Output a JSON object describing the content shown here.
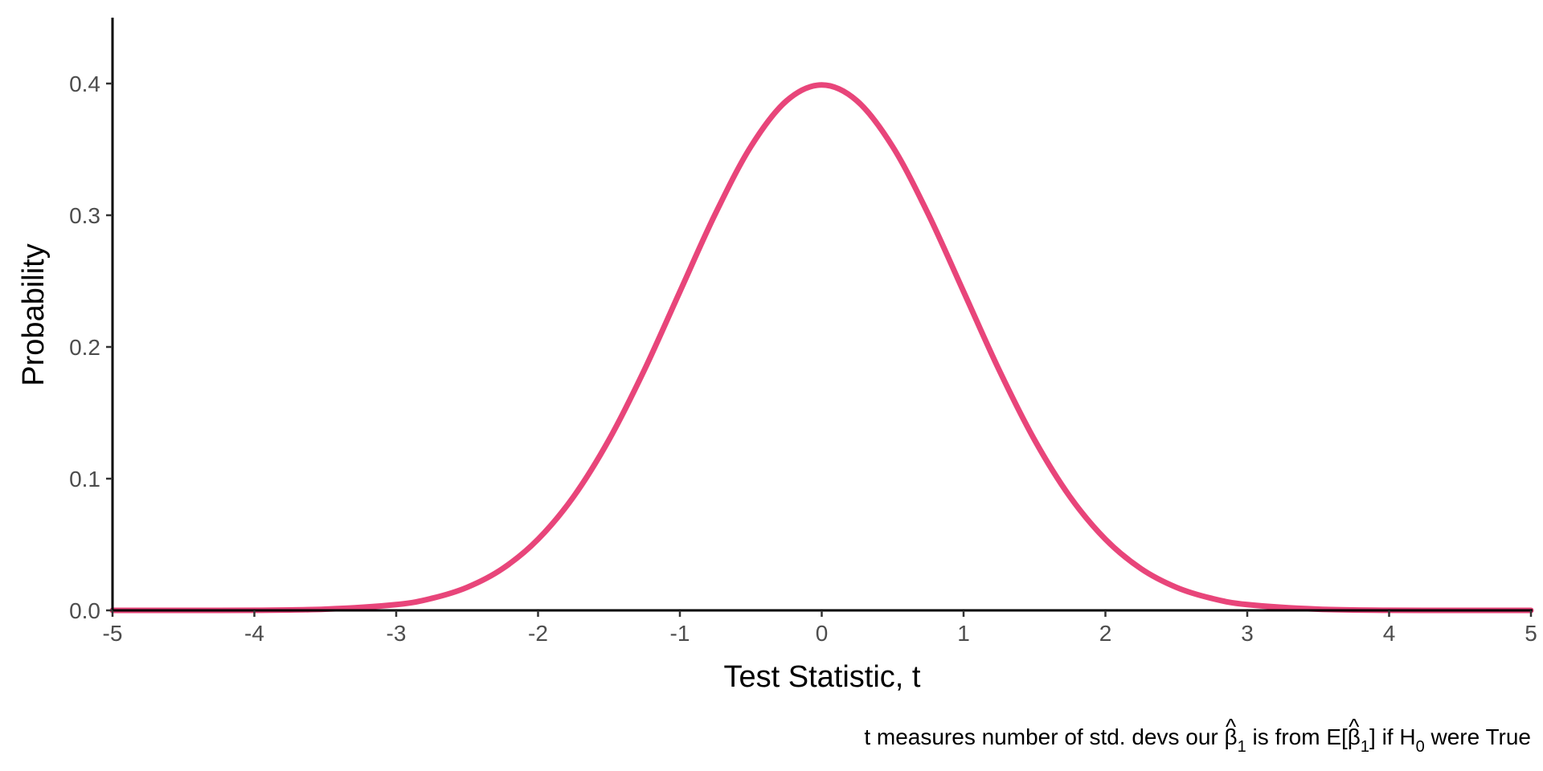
{
  "chart_data": {
    "type": "line",
    "title": "",
    "xlabel": "Test Statistic, t",
    "ylabel": "Probability",
    "xlim": [
      -5,
      5
    ],
    "ylim": [
      0,
      0.45
    ],
    "x_ticks": [
      -5,
      -4,
      -3,
      -2,
      -1,
      0,
      1,
      2,
      3,
      4,
      5
    ],
    "x_tick_labels": [
      "-5",
      "-4",
      "-3",
      "-2",
      "-1",
      "0",
      "1",
      "2",
      "3",
      "4",
      "5"
    ],
    "y_ticks": [
      0.0,
      0.1,
      0.2,
      0.3,
      0.4
    ],
    "y_tick_labels": [
      "0.0",
      "0.1",
      "0.2",
      "0.3",
      "0.4"
    ],
    "grid": false,
    "legend": "none",
    "line_color": "#e8457a",
    "series": [
      {
        "x": [
          -5,
          -4.5,
          -4,
          -3.5,
          -3,
          -2.75,
          -2.5,
          -2.25,
          -2,
          -1.75,
          -1.5,
          -1.25,
          -1,
          -0.75,
          -0.5,
          -0.25,
          0,
          0.25,
          0.5,
          0.75,
          1,
          1.25,
          1.5,
          1.75,
          2,
          2.25,
          2.5,
          2.75,
          3,
          3.5,
          4,
          4.5,
          5
        ],
        "values": [
          0.0,
          0.0,
          0.0001,
          0.0009,
          0.0044,
          0.0091,
          0.0175,
          0.0317,
          0.054,
          0.0863,
          0.1295,
          0.1826,
          0.242,
          0.3011,
          0.3521,
          0.3867,
          0.3989,
          0.3867,
          0.3521,
          0.3011,
          0.242,
          0.1826,
          0.1295,
          0.0863,
          0.054,
          0.0317,
          0.0175,
          0.0091,
          0.0044,
          0.0009,
          0.0001,
          0.0,
          0.0
        ]
      }
    ],
    "caption": {
      "p1": "t measures number of std. devs our ",
      "beta": "β",
      "hat": "^",
      "sub_1": "1",
      "p2": " is from E[",
      "p3": "] if H",
      "sub_0": "0",
      "p4": " were True"
    }
  }
}
